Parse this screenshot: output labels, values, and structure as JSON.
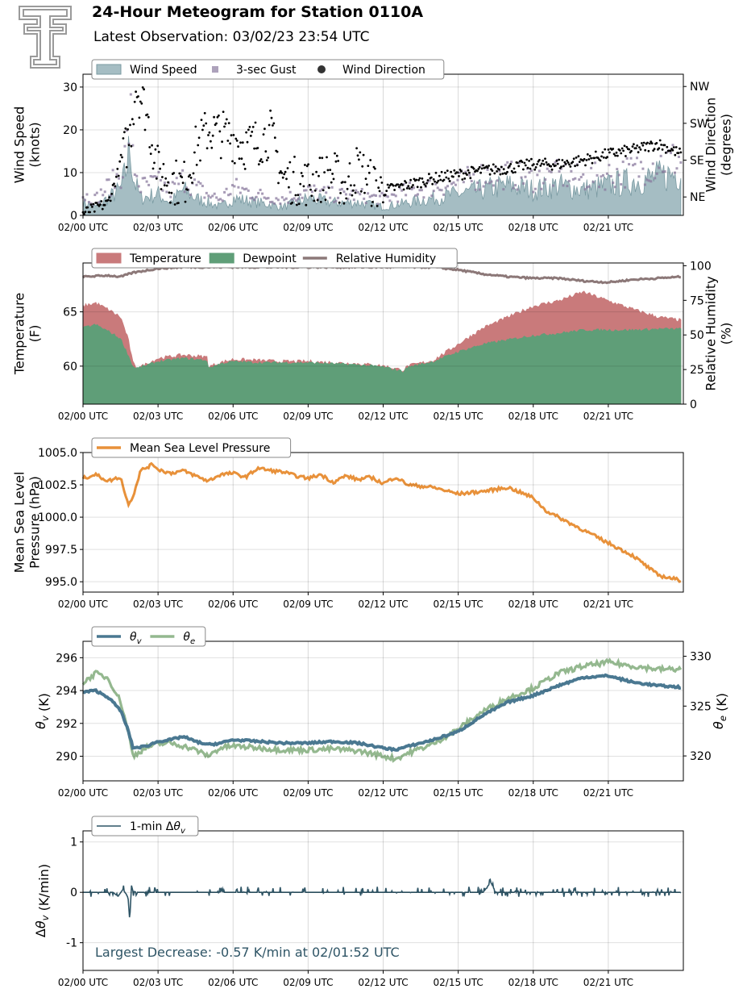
{
  "header": {
    "title": "24-Hour Meteogram for Station 0110A",
    "subtitle": "Latest Observation: 03/02/23 23:54 UTC"
  },
  "colors": {
    "wind_speed": "#a5bdc3",
    "wind_speed_edge": "#7a9aa2",
    "gust": "#8a7a9e",
    "wind_dir": "#000000",
    "temperature": "#c97a7b",
    "dewpoint": "#5f9e78",
    "humidity": "#8c7878",
    "pressure": "#e8913a",
    "theta_v": "#4a7891",
    "theta_e": "#94b88f",
    "dtheta": "#2f5566"
  },
  "chart_data": [
    {
      "id": "wind",
      "type": "area",
      "x_ticks": [
        "02/00 UTC",
        "02/03 UTC",
        "02/06 UTC",
        "02/09 UTC",
        "02/12 UTC",
        "02/15 UTC",
        "02/18 UTC",
        "02/21 UTC"
      ],
      "ylabel": "Wind Speed\n(knots)",
      "y2label": "Wind Direction\n(degrees)",
      "ylim": [
        0,
        33
      ],
      "y_ticks": [
        0,
        10,
        20,
        30
      ],
      "y2_ticks": [
        "NE",
        "SE",
        "SW",
        "NW"
      ],
      "y2_tick_values": [
        45,
        135,
        225,
        315
      ],
      "y2lim": [
        0,
        345
      ],
      "grid": true,
      "legend": [
        {
          "label": "Wind Speed",
          "kind": "area"
        },
        {
          "label": "3-sec Gust",
          "kind": "square"
        },
        {
          "label": "Wind Direction",
          "kind": "dot"
        }
      ],
      "series": [
        {
          "name": "Wind Speed",
          "hours": [
            0,
            0.5,
            1,
            1.5,
            1.7,
            1.9,
            2,
            2.3,
            3,
            3.5,
            4,
            4.5,
            5,
            5.5,
            6,
            7,
            8,
            9,
            10,
            11,
            12,
            13,
            14,
            15,
            16,
            17,
            18,
            19,
            20,
            21,
            22,
            23,
            23.9
          ],
          "values": [
            3,
            2,
            4,
            6,
            10,
            17,
            9,
            4,
            5,
            3,
            6,
            4,
            3,
            2,
            4,
            3,
            2,
            4,
            3,
            3,
            2,
            3,
            4,
            5,
            6,
            7,
            6,
            7,
            6,
            7,
            8,
            9,
            10
          ]
        },
        {
          "name": "3-sec Gust",
          "hours": [
            0,
            0.5,
            1,
            1.5,
            1.7,
            1.9,
            2,
            2.3,
            3,
            3.5,
            4,
            4.5,
            5,
            5.5,
            6,
            7,
            8,
            9,
            10,
            11,
            12,
            13,
            14,
            15,
            16,
            17,
            18,
            19,
            20,
            21,
            22,
            23,
            23.9
          ],
          "values": [
            5,
            4,
            7,
            10,
            15,
            25,
            13,
            7,
            8,
            6,
            9,
            7,
            5,
            4,
            7,
            5,
            4,
            6,
            5,
            5,
            4,
            6,
            7,
            8,
            10,
            10,
            9,
            10,
            9,
            10,
            11,
            13,
            14
          ]
        },
        {
          "name": "Wind Direction",
          "hours": [
            0,
            1,
            1.9,
            2.1,
            2.5,
            3,
            4,
            4.5,
            5,
            6,
            6.5,
            7,
            7.5,
            8,
            9,
            10,
            10.5,
            11,
            11.5,
            12,
            13,
            14,
            15,
            16,
            17,
            18,
            19,
            20,
            21,
            22,
            23,
            23.9
          ],
          "values": [
            5,
            30,
            200,
            320,
            260,
            110,
            70,
            160,
            210,
            190,
            170,
            180,
            200,
            90,
            80,
            100,
            70,
            120,
            80,
            60,
            75,
            90,
            100,
            110,
            115,
            125,
            125,
            135,
            150,
            160,
            175,
            150
          ]
        }
      ]
    },
    {
      "id": "temp",
      "type": "area",
      "x_ticks": [
        "02/00 UTC",
        "02/03 UTC",
        "02/06 UTC",
        "02/09 UTC",
        "02/12 UTC",
        "02/15 UTC",
        "02/18 UTC",
        "02/21 UTC"
      ],
      "ylabel": "Temperature\n(F)",
      "y2label": "Relative Humidity\n(%)",
      "ylim": [
        56.5,
        69.5
      ],
      "y_ticks": [
        60,
        65
      ],
      "y2lim": [
        0,
        102
      ],
      "y2_ticks": [
        0,
        25,
        50,
        75,
        100
      ],
      "grid": true,
      "legend": [
        {
          "label": "Temperature",
          "kind": "area"
        },
        {
          "label": "Dewpoint",
          "kind": "area"
        },
        {
          "label": "Relative Humidity",
          "kind": "line"
        }
      ],
      "series": [
        {
          "name": "Temperature",
          "hours": [
            0,
            0.5,
            1,
            1.5,
            1.8,
            2,
            2.2,
            3,
            4,
            5,
            5,
            5.5,
            6,
            7,
            8,
            9,
            10,
            11,
            12,
            12.8,
            13,
            14,
            15,
            16,
            17,
            18,
            19,
            20,
            21,
            22,
            23,
            23.9
          ],
          "values": [
            65.5,
            65.8,
            65.2,
            64.5,
            62.5,
            60.2,
            59.8,
            60.7,
            61.0,
            60.8,
            59.9,
            60.3,
            60.6,
            60.5,
            60.4,
            60.4,
            60.3,
            60.2,
            60.0,
            59.6,
            60.0,
            60.5,
            62.0,
            63.5,
            64.5,
            65.5,
            66.0,
            66.8,
            66.0,
            65.2,
            64.5,
            64.2
          ]
        },
        {
          "name": "Dewpoint",
          "hours": [
            0,
            0.5,
            1,
            1.5,
            1.8,
            2,
            2.2,
            3,
            4,
            5,
            5,
            5.5,
            6,
            7,
            8,
            9,
            10,
            11,
            12,
            12.8,
            13,
            14,
            15,
            16,
            17,
            18,
            19,
            20,
            21,
            22,
            23,
            23.9
          ],
          "values": [
            63.5,
            63.8,
            63.2,
            62.5,
            61.0,
            59.9,
            59.8,
            60.4,
            60.7,
            60.5,
            59.8,
            60.2,
            60.4,
            60.3,
            60.3,
            60.3,
            60.2,
            60.1,
            59.9,
            59.5,
            59.9,
            60.4,
            61.3,
            62.0,
            62.4,
            62.8,
            63.0,
            63.3,
            63.3,
            63.3,
            63.4,
            63.4
          ]
        },
        {
          "name": "Relative Humidity",
          "hours": [
            0,
            1,
            1.5,
            2,
            3,
            4,
            5,
            6,
            7,
            8,
            9,
            10,
            11,
            12,
            13,
            14,
            15,
            16,
            17,
            18,
            19,
            20,
            21,
            22,
            23,
            23.9
          ],
          "values": [
            92,
            93,
            92,
            95,
            98,
            99,
            99,
            99,
            99,
            99,
            99,
            99,
            99,
            99,
            99,
            99,
            97,
            94,
            92,
            91,
            91,
            89,
            88,
            90,
            91,
            92
          ]
        }
      ]
    },
    {
      "id": "pressure",
      "type": "line",
      "x_ticks": [
        "02/00 UTC",
        "02/03 UTC",
        "02/06 UTC",
        "02/09 UTC",
        "02/12 UTC",
        "02/15 UTC",
        "02/18 UTC",
        "02/21 UTC"
      ],
      "ylabel": "Mean Sea Level\nPressure (hPa)",
      "ylim": [
        994.2,
        1005.0
      ],
      "y_ticks": [
        995.0,
        997.5,
        1000.0,
        1002.5,
        1005.0
      ],
      "grid": true,
      "legend": [
        {
          "label": "Mean Sea Level Pressure",
          "kind": "line"
        }
      ],
      "series": [
        {
          "name": "Mean Sea Level Pressure",
          "hours": [
            0,
            0.5,
            1,
            1.5,
            1.8,
            2,
            2.3,
            2.8,
            3,
            3.5,
            4,
            4.5,
            5,
            5.5,
            6,
            6.5,
            7,
            7.5,
            8,
            8.5,
            9,
            9.5,
            10,
            10.5,
            11,
            11.5,
            12,
            12.5,
            13,
            14,
            15,
            16,
            17,
            18,
            18.5,
            19,
            20,
            21,
            22,
            23,
            23.9
          ],
          "values": [
            1003.0,
            1003.3,
            1002.8,
            1003.1,
            1001.0,
            1001.6,
            1003.6,
            1004.1,
            1003.7,
            1003.4,
            1003.6,
            1003.2,
            1002.8,
            1003.3,
            1003.4,
            1003.1,
            1003.8,
            1003.6,
            1003.5,
            1003.2,
            1003.0,
            1003.3,
            1002.7,
            1003.2,
            1002.9,
            1003.1,
            1002.6,
            1003.1,
            1002.5,
            1002.3,
            1001.8,
            1002.0,
            1002.3,
            1001.5,
            1000.5,
            1000.0,
            999.0,
            998.0,
            997.0,
            995.5,
            995.1
          ]
        }
      ]
    },
    {
      "id": "theta",
      "type": "line",
      "x_ticks": [
        "02/00 UTC",
        "02/03 UTC",
        "02/06 UTC",
        "02/09 UTC",
        "02/12 UTC",
        "02/15 UTC",
        "02/18 UTC",
        "02/21 UTC"
      ],
      "ylabel": "θv (K)",
      "y2label": "θe (K)",
      "ylim": [
        288.5,
        297.0
      ],
      "y_ticks": [
        290,
        292,
        294,
        296
      ],
      "y2lim": [
        317.5,
        331.5
      ],
      "y2_ticks": [
        320,
        325,
        330
      ],
      "grid": true,
      "legend": [
        {
          "label": "θv",
          "kind": "line"
        },
        {
          "label": "θe",
          "kind": "line"
        }
      ],
      "series": [
        {
          "name": "θv",
          "axis": "left",
          "hours": [
            0,
            0.5,
            1,
            1.5,
            1.8,
            2,
            2.5,
            3,
            3.5,
            4,
            4.5,
            5,
            5.5,
            6,
            7,
            8,
            9,
            10,
            11,
            12,
            12.5,
            13,
            14,
            15,
            16,
            17,
            18,
            19,
            20,
            21,
            22,
            23,
            23.9
          ],
          "values": [
            293.9,
            294.0,
            293.6,
            292.8,
            291.6,
            290.5,
            290.6,
            290.9,
            291.0,
            291.2,
            290.9,
            290.7,
            290.8,
            291.0,
            290.9,
            290.8,
            290.8,
            290.9,
            290.8,
            290.5,
            290.4,
            290.6,
            291.0,
            291.5,
            292.5,
            293.3,
            293.7,
            294.3,
            294.8,
            294.9,
            294.5,
            294.3,
            294.2
          ]
        },
        {
          "name": "θe",
          "axis": "right",
          "hours": [
            0,
            0.5,
            1,
            1.5,
            1.8,
            2,
            2.5,
            3,
            3.5,
            4,
            4.5,
            5,
            5.5,
            6,
            7,
            8,
            9,
            10,
            11,
            12,
            12.5,
            13,
            14,
            15,
            16,
            17,
            18,
            19,
            20,
            21,
            22,
            23,
            23.9
          ],
          "values": [
            327.3,
            328.3,
            327.8,
            325.5,
            322.5,
            320.0,
            320.8,
            321.2,
            321.3,
            321.0,
            320.6,
            320.0,
            320.8,
            321.0,
            320.8,
            320.6,
            320.6,
            320.7,
            320.5,
            320.0,
            319.7,
            320.3,
            321.2,
            322.7,
            324.5,
            325.8,
            326.8,
            328.3,
            329.0,
            329.4,
            329.0,
            328.7,
            328.7
          ]
        }
      ]
    },
    {
      "id": "dtheta",
      "type": "line",
      "x_ticks": [
        "02/00 UTC",
        "02/03 UTC",
        "02/06 UTC",
        "02/09 UTC",
        "02/12 UTC",
        "02/15 UTC",
        "02/18 UTC",
        "02/21 UTC"
      ],
      "ylabel": "Δθv (K/min)",
      "ylim": [
        -1.55,
        1.22
      ],
      "y_ticks": [
        -1,
        0,
        1
      ],
      "grid": true,
      "legend": [
        {
          "label": "1-min Δθv",
          "kind": "line"
        }
      ],
      "annotation": "Largest Decrease: -0.57 K/min at 02/01:52 UTC",
      "series": [
        {
          "name": "1-min Δθv",
          "hours": [
            0,
            1.2,
            1.4,
            1.6,
            1.8,
            1.87,
            1.93,
            2.0,
            2.2,
            3,
            6,
            9,
            12,
            15,
            16,
            16.3,
            16.5,
            18,
            21,
            23.9
          ],
          "values": [
            0,
            0,
            -0.08,
            0.06,
            -0.1,
            -0.57,
            0.15,
            0.02,
            0,
            0,
            0,
            0,
            0,
            0,
            0,
            0.2,
            0,
            0,
            0,
            0
          ]
        }
      ]
    }
  ]
}
